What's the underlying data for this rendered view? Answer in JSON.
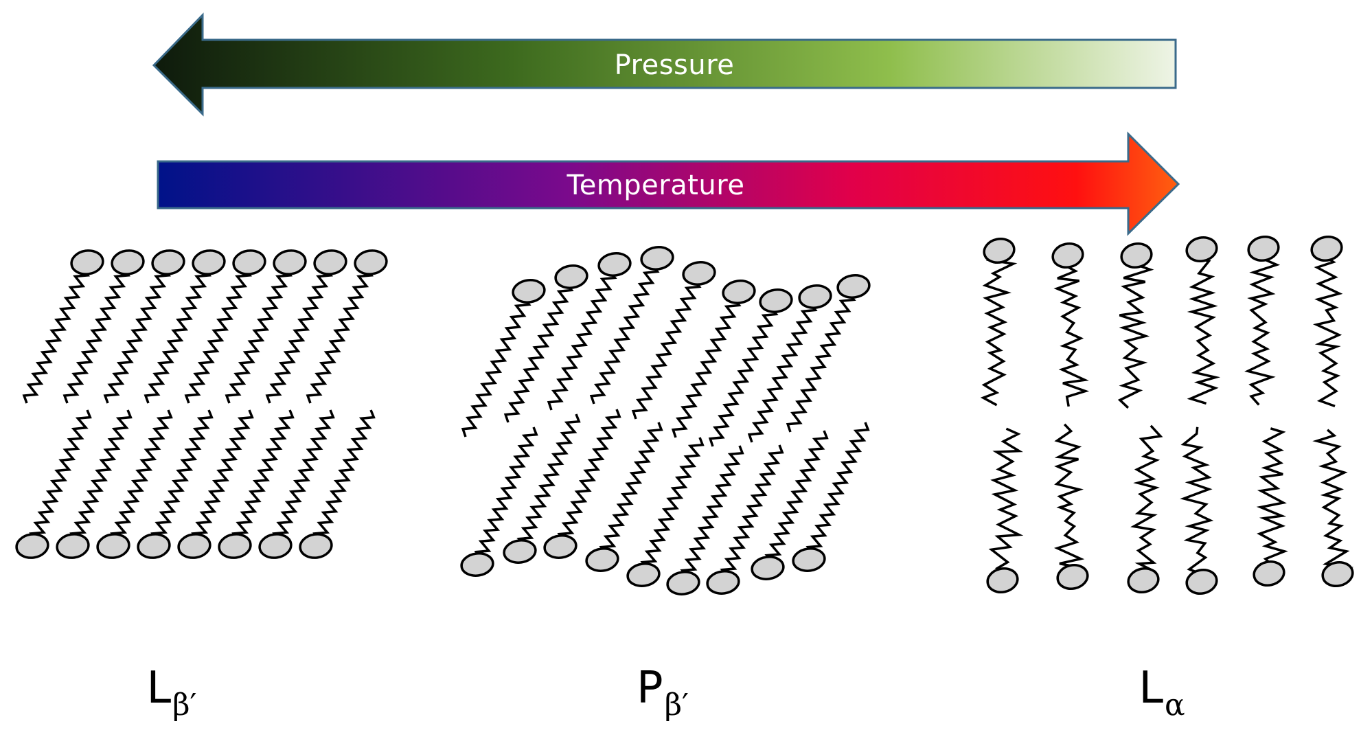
{
  "arrows": {
    "pressure": {
      "label": "Pressure",
      "direction": "left",
      "gradient": [
        "#0e1a0c",
        "#3d6a1e",
        "#8fbe4c",
        "#e9f1df"
      ],
      "border": "#3a6a8a"
    },
    "temperature": {
      "label": "Temperature",
      "direction": "right",
      "gradient": [
        "#001289",
        "#7a0a8c",
        "#e1004a",
        "#ff1010",
        "#ff6010"
      ],
      "border": "#3a6a8a"
    }
  },
  "phases": [
    {
      "id": "lb",
      "main": "L",
      "sub": "β′",
      "arrangement": "tilted-ordered"
    },
    {
      "id": "pb",
      "main": "P",
      "sub": "β′",
      "arrangement": "rippled"
    },
    {
      "id": "la",
      "main": "L",
      "sub": "α",
      "arrangement": "disordered"
    }
  ]
}
